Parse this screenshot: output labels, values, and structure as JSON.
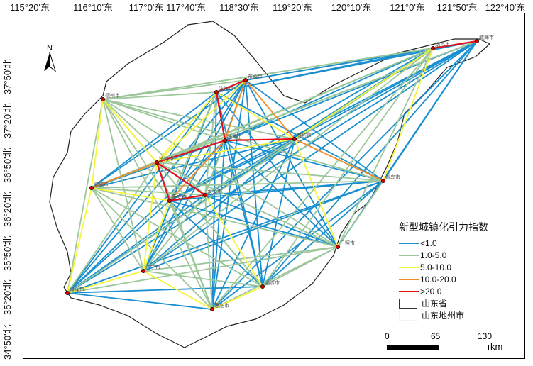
{
  "axes": {
    "longitude_labels": [
      "115°20'东",
      "116°10'东",
      "117°0'东",
      "117°40'东",
      "118°30'东",
      "119°20'东",
      "120°10'东",
      "121°0'东",
      "121°50'东",
      "122°40'东"
    ],
    "latitude_labels": [
      "37°50'北",
      "37°20'北",
      "36°50'北",
      "36°20'北",
      "35°50'北",
      "35°20'北",
      "34°50'北"
    ]
  },
  "north_arrow": "N",
  "cities": [
    "德州市",
    "滨州市",
    "东营市",
    "济南市",
    "淄博市",
    "潍坊市",
    "聊城市",
    "泰安市",
    "莱芜市",
    "烟台市",
    "威海市",
    "青岛市",
    "日照市",
    "临沂市",
    "枣庄市",
    "济宁市",
    "菏泽市"
  ],
  "link_classes": {
    "red": [
      [
        "济南市",
        "淄博市"
      ],
      [
        "济南市",
        "泰安市"
      ],
      [
        "济南市",
        "莱芜市"
      ],
      [
        "泰安市",
        "莱芜市"
      ],
      [
        "淄博市",
        "滨州市"
      ],
      [
        "淄博市",
        "潍坊市"
      ],
      [
        "滨州市",
        "东营市"
      ],
      [
        "烟台市",
        "威海市"
      ]
    ],
    "orange": [
      [
        "济南市",
        "聊城市"
      ],
      [
        "东营市",
        "潍坊市"
      ],
      [
        "潍坊市",
        "青岛市"
      ],
      [
        "淄博市",
        "泰安市"
      ],
      [
        "东营市",
        "淄博市"
      ]
    ],
    "yellow": [
      [
        "德州市",
        "济南市"
      ],
      [
        "滨州市",
        "济南市"
      ],
      [
        "东营市",
        "济南市"
      ],
      [
        "滨州市",
        "潍坊市"
      ],
      [
        "济南市",
        "潍坊市"
      ],
      [
        "聊城市",
        "泰安市"
      ],
      [
        "济南市",
        "济宁市"
      ],
      [
        "泰安市",
        "济宁市"
      ],
      [
        "潍坊市",
        "日照市"
      ],
      [
        "青岛市",
        "烟台市"
      ],
      [
        "枣庄市",
        "临沂市"
      ],
      [
        "济宁市",
        "枣庄市"
      ],
      [
        "菏泽市",
        "济宁市"
      ],
      [
        "烟台市",
        "潍坊市"
      ],
      [
        "德州市",
        "聊城市"
      ],
      [
        "莱芜市",
        "临沂市"
      ],
      [
        "聊城市",
        "菏泽市"
      ]
    ]
  },
  "legend": {
    "title": "新型城镇化引力指数",
    "items": [
      {
        "label": "<1.0",
        "color": "#1a8fd0"
      },
      {
        "label": "1.0-5.0",
        "color": "#9cc79a"
      },
      {
        "label": "5.0-10.0",
        "color": "#f7f53a"
      },
      {
        "label": "10.0-20.0",
        "color": "#f28c28"
      },
      {
        "label": ">20.0",
        "color": "#e3121a"
      }
    ],
    "province": "山东省",
    "prefecture": "山东地州市"
  },
  "scale_bar": {
    "ticks": [
      "0",
      "65",
      "130"
    ],
    "unit": "km"
  }
}
